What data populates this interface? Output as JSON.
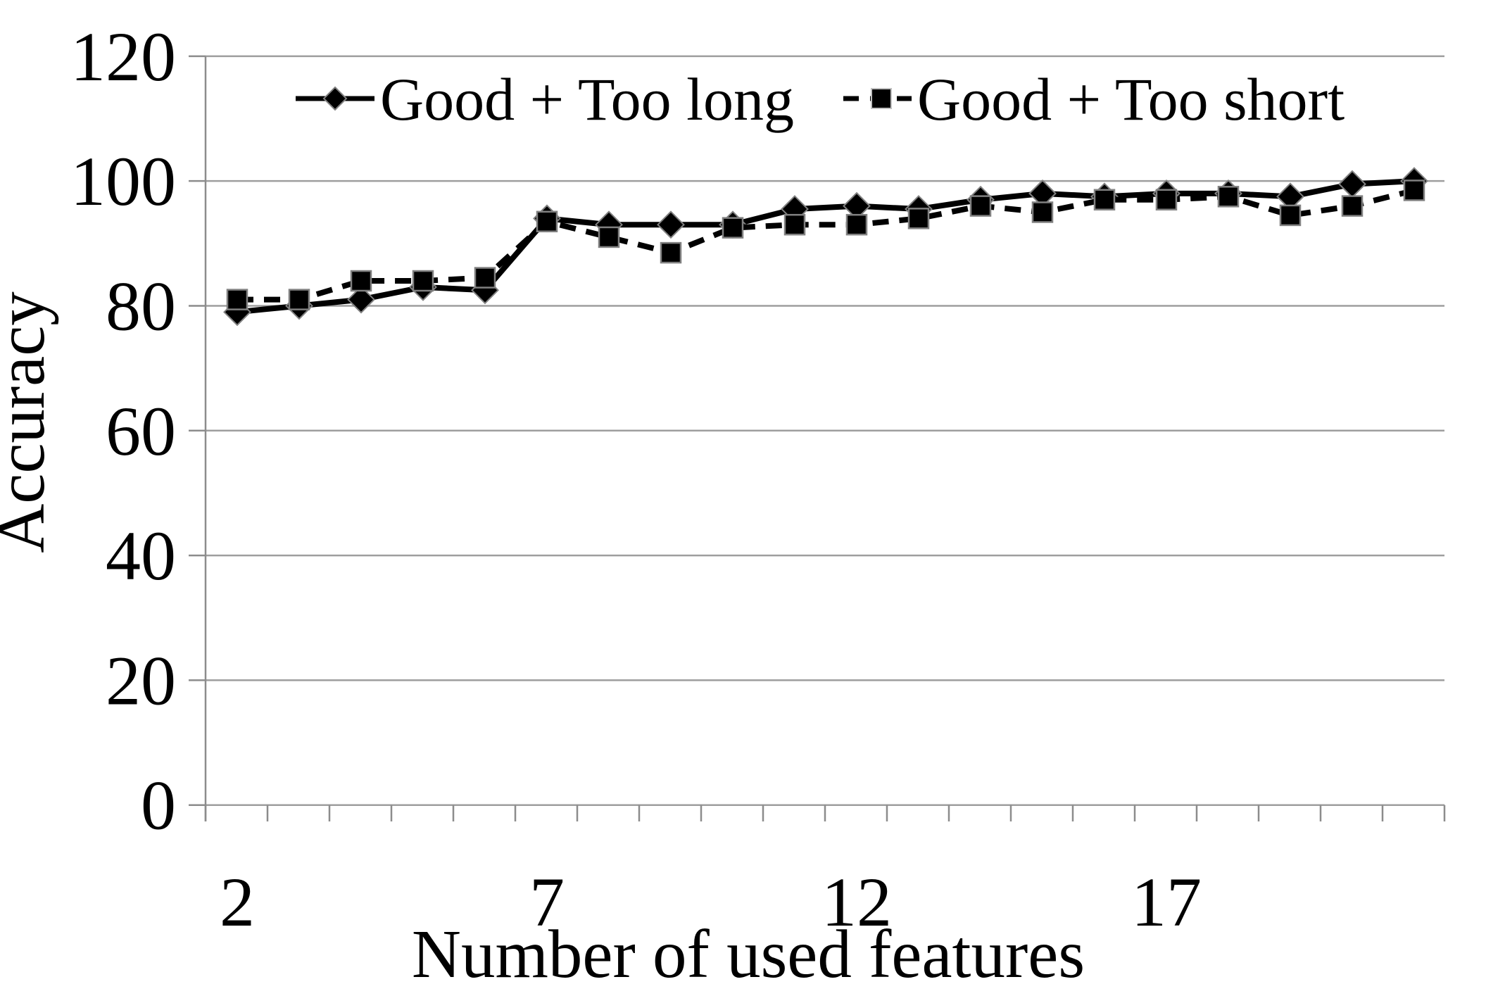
{
  "chart_data": {
    "type": "line",
    "title": "",
    "xlabel": "Number of used features",
    "ylabel": "Accuracy",
    "x": [
      2,
      3,
      4,
      5,
      6,
      7,
      8,
      9,
      10,
      11,
      12,
      13,
      14,
      15,
      16,
      17,
      18,
      19,
      20,
      21
    ],
    "x_tick_labels": [
      "2",
      "7",
      "12",
      "17"
    ],
    "x_tick_label_positions": [
      2,
      7,
      12,
      17
    ],
    "y_ticks": [
      "0",
      "20",
      "40",
      "60",
      "80",
      "100",
      "120"
    ],
    "y_tick_values": [
      0,
      20,
      40,
      60,
      80,
      100,
      120
    ],
    "ylim": [
      0,
      120
    ],
    "grid": true,
    "legend_position": "top-inside",
    "series": [
      {
        "name": "Good + Too long",
        "marker": "diamond",
        "line_style": "solid",
        "color": "#000000",
        "values": [
          79,
          80,
          81,
          83,
          82.5,
          94,
          93,
          93,
          93,
          95.5,
          96,
          95.5,
          97,
          98,
          97.5,
          98,
          98,
          97.5,
          99.5,
          100
        ]
      },
      {
        "name": "Good + Too short",
        "marker": "square",
        "line_style": "dashed",
        "color": "#000000",
        "values": [
          81,
          81,
          84,
          84,
          84.5,
          93.5,
          91,
          88.5,
          92.5,
          93,
          93,
          94,
          96,
          95,
          97,
          97,
          97.5,
          94.5,
          96,
          98.5
        ]
      }
    ],
    "colors": {
      "series": "#000000",
      "gridline": "#9e9e9e",
      "axis": "#8c8c8c",
      "marker_border": "#808080",
      "background": "#ffffff"
    }
  }
}
